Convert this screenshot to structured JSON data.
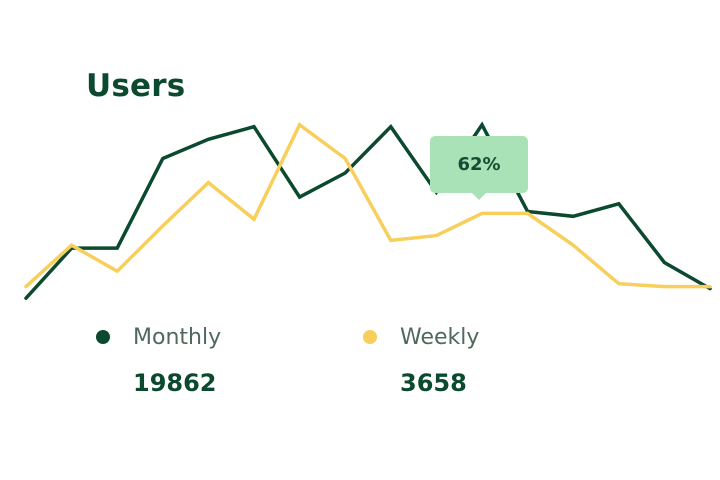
{
  "chart_data": {
    "type": "line",
    "title": "Users",
    "x": [
      0,
      1,
      2,
      3,
      4,
      5,
      6,
      7,
      8,
      9,
      10,
      11,
      12,
      13,
      14,
      15
    ],
    "series": [
      {
        "name": "Monthly",
        "color": "#0b4a2e",
        "values": [
          0,
          52,
          52,
          145,
          165,
          178,
          105,
          130,
          178,
          110,
          180,
          90,
          85,
          98,
          37,
          10
        ]
      },
      {
        "name": "Weekly",
        "color": "#f8cf5c",
        "values": [
          12,
          55,
          28,
          75,
          120,
          82,
          180,
          145,
          60,
          65,
          88,
          88,
          55,
          15,
          12,
          12
        ]
      }
    ],
    "ylim": [
      -5,
      185
    ],
    "grid": false,
    "legend_position": "bottom",
    "tooltip": {
      "text": "62%",
      "series_index": 1,
      "x_index": 10
    }
  },
  "legend": [
    {
      "label": "Monthly",
      "value": "19862",
      "color": "#0b4a2e"
    },
    {
      "label": "Weekly",
      "value": "3658",
      "color": "#f8cf5c"
    }
  ]
}
